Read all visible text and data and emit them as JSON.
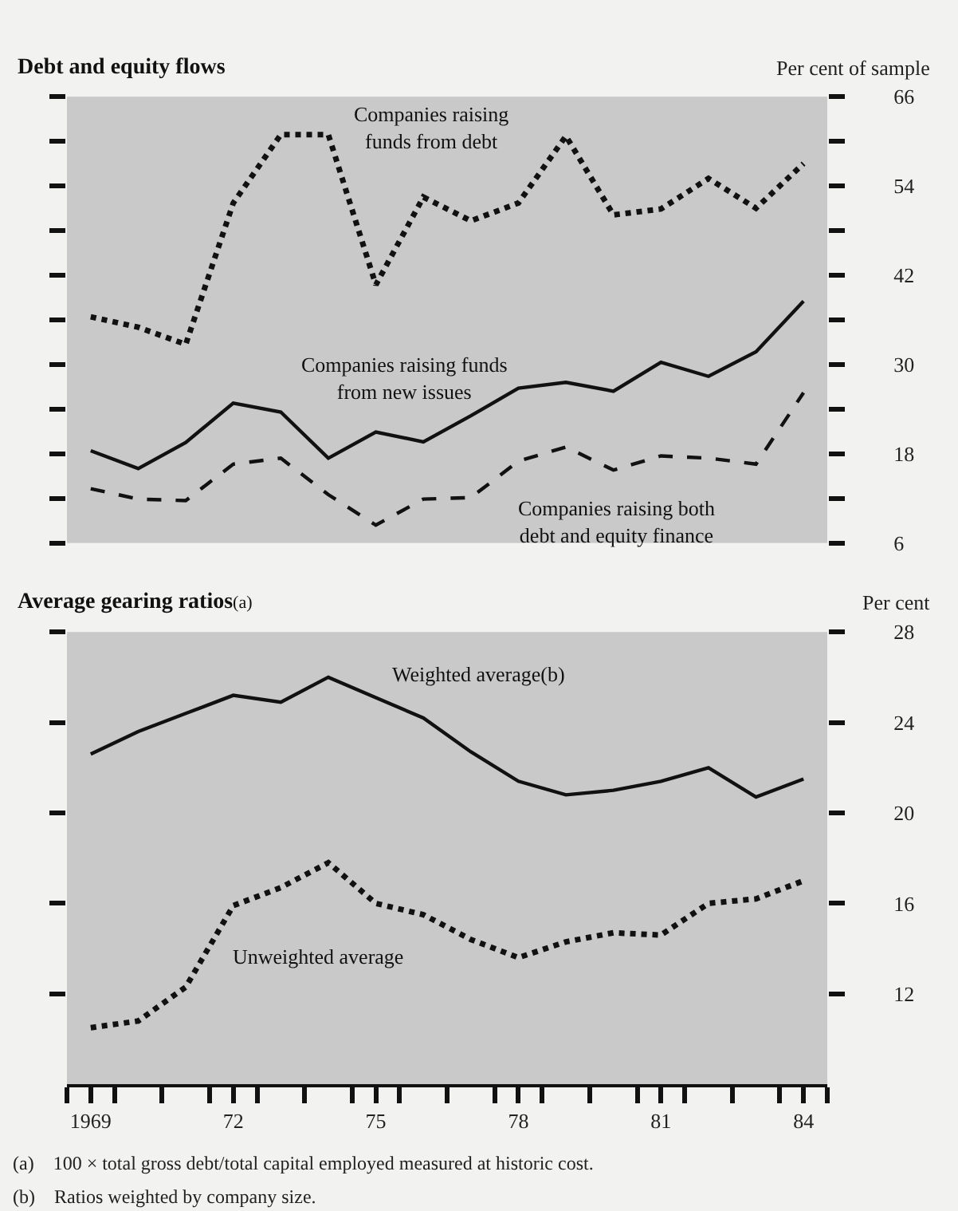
{
  "chart_data": [
    {
      "type": "line",
      "title": "Debt and equity flows",
      "ylabel": "Per cent of sample",
      "x": [
        1969,
        1970,
        1971,
        1972,
        1973,
        1974,
        1975,
        1976,
        1977,
        1978,
        1979,
        1980,
        1981,
        1982,
        1983,
        1984
      ],
      "series": [
        {
          "color": "#111111",
          "line_style": "dotted",
          "values": [
            36.4,
            35,
            32.7,
            51.7,
            60.9,
            60.9,
            40.7,
            52.5,
            49.3,
            51.7,
            60.7,
            50.1,
            50.9,
            55,
            51,
            57
          ]
        },
        {
          "color": "#111111",
          "line_style": "solid",
          "values": [
            18.4,
            16,
            19.5,
            24.8,
            23.6,
            17.4,
            20.9,
            19.6,
            23.1,
            26.8,
            27.6,
            26.4,
            30.3,
            28.4,
            31.7,
            38.5
          ]
        },
        {
          "color": "#111111",
          "line_style": "dashed",
          "values": [
            13.3,
            11.9,
            11.7,
            16.6,
            17.4,
            12.5,
            8.4,
            11.9,
            12.1,
            17,
            18.9,
            15.8,
            17.7,
            17.4,
            16.6,
            26.2
          ]
        }
      ],
      "annotations": [
        {
          "text": "Companies raising\nfunds from debt",
          "x": 1976,
          "y": 52.5
        },
        {
          "text": "Companies raising funds\nfrom new issues",
          "x": 1976,
          "y": 19.6
        },
        {
          "text": "Companies raising both\ndebt and equity finance",
          "x": 1980,
          "y": 15.8
        }
      ],
      "xlim": [
        1968.5,
        1984.5
      ],
      "ylim": [
        6,
        66
      ],
      "yticks": [
        66,
        {
          "value": 60,
          "label": null
        },
        54,
        {
          "value": 48,
          "label": null
        },
        42,
        {
          "value": 36,
          "label": null
        },
        30,
        {
          "value": 24,
          "label": null
        },
        18,
        {
          "value": 12,
          "label": null
        },
        6
      ],
      "tick_labels": "y",
      "grid": false,
      "marker": "none"
    },
    {
      "type": "line",
      "title": "Average gearing ratios$_{(a)}$",
      "ylabel": "Per cent",
      "x": [
        1969,
        1970,
        1971,
        1972,
        1973,
        1974,
        1975,
        1976,
        1977,
        1978,
        1979,
        1980,
        1981,
        1982,
        1983,
        1984
      ],
      "series": [
        {
          "color": "#111111",
          "line_style": "solid",
          "values": [
            22.6,
            23.6,
            24.4,
            25.2,
            24.9,
            26,
            25.1,
            24.2,
            22.7,
            21.4,
            20.8,
            21,
            21.4,
            22,
            20.7,
            21.5
          ]
        },
        {
          "color": "#111111",
          "line_style": "dotted",
          "values": [
            10.5,
            10.8,
            12.3,
            15.9,
            16.7,
            17.8,
            16,
            15.5,
            14.4,
            13.6,
            14.3,
            14.7,
            14.6,
            16,
            16.2,
            17
          ]
        }
      ],
      "annotations": [
        {
          "text": "Weighted average(b)",
          "x": 1975,
          "y": 25.1
        },
        {
          "text": "Unweighted average",
          "x": 1972,
          "y": 15.9
        },
        "(a)    100 × total gross debt/total capital employed measured at historic cost.",
        "(b)    Ratios weighted by company size."
      ],
      "xlim": [
        1968.5,
        1984.5
      ],
      "ylim": [
        8,
        28
      ],
      "xticks": [
        {
          "value": 1968.5,
          "label": null
        },
        {
          "value": 1969,
          "label": "1969"
        },
        {
          "value": 1969.5,
          "label": null
        },
        {
          "value": 1970.5,
          "label": null
        },
        {
          "value": 1971.5,
          "label": null
        },
        {
          "value": 1972,
          "label": "72"
        },
        {
          "value": 1972.5,
          "label": null
        },
        {
          "value": 1973.5,
          "label": null
        },
        {
          "value": 1974.5,
          "label": null
        },
        {
          "value": 1975,
          "label": "75"
        },
        {
          "value": 1975.5,
          "label": null
        },
        {
          "value": 1976.5,
          "label": null
        },
        {
          "value": 1977.5,
          "label": null
        },
        {
          "value": 1978,
          "label": "78"
        },
        {
          "value": 1978.5,
          "label": null
        },
        {
          "value": 1979.5,
          "label": null
        },
        {
          "value": 1980.5,
          "label": null
        },
        {
          "value": 1981,
          "label": "81"
        },
        {
          "value": 1981.5,
          "label": null
        },
        {
          "value": 1982.5,
          "label": null
        },
        {
          "value": 1983.5,
          "label": null
        },
        {
          "value": 1984,
          "label": "84"
        },
        {
          "value": 1984.5,
          "label": null
        }
      ],
      "yticks": [
        28,
        24,
        20,
        16,
        12
      ],
      "grid": false,
      "marker": "none"
    }
  ]
}
